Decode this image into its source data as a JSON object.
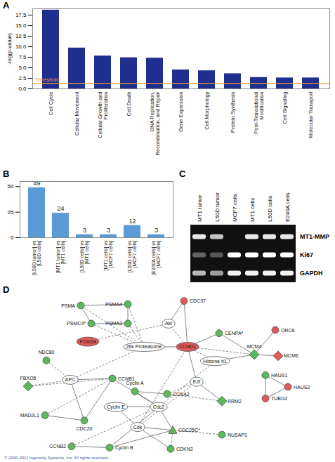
{
  "chart_data": [
    {
      "type": "bar",
      "title": "A",
      "categories": [
        "Cell Cycle",
        "Cellular Movement",
        "Cellular Growth and Proliferation",
        "Cell Death",
        "DNA Replication, Recombination, and Repair",
        "Gene Expression",
        "Cell Morphology",
        "Protein Synthesis",
        "Post-Translational Modification",
        "Cell Signaling",
        "Molecular Transport"
      ],
      "values": [
        18.7,
        9.7,
        7.8,
        7.4,
        7.3,
        4.5,
        4.3,
        3.6,
        2.7,
        2.6,
        2.6
      ],
      "color": "#1f2f8f",
      "ylabel": "-log(p-value)",
      "ylim": [
        0,
        19
      ],
      "yticks": [
        {
          "value": 0,
          "label": "0.0"
        },
        2.5,
        {
          "value": 5,
          "label": "5.0"
        },
        7.5,
        {
          "value": 10,
          "label": "10.0"
        },
        12.5,
        {
          "value": 15,
          "label": "15.0"
        },
        17.5
      ],
      "annotations": [
        {
          "y": 1.3,
          "text": "Threshold",
          "color": "#f0a030"
        }
      ]
    },
    {
      "type": "bar",
      "title": "B",
      "categories": [
        "[L50D tumor] vs [L50D cells]",
        "[MT1 tumor] vs [MT1 cells]",
        "[L50D cells] vs [MT1 cells]",
        "[MT1 cells] vs [MCF7 cells]",
        "[L50D cells] vs [MCF7 cells]",
        "[E240A cells] vs [MCF7 cells]"
      ],
      "values": [
        49,
        24,
        3,
        3,
        12,
        3
      ],
      "color": "#5b9bd5",
      "ylim": [
        0,
        55
      ],
      "yticks": [
        0,
        25,
        50
      ],
      "data_labels": true
    }
  ],
  "gel": {
    "title": "C",
    "lanes": [
      "MT1 tumor",
      "L50D tumor",
      "MCF7 cells",
      "MT1 cells",
      "L50D cells",
      "E240A cells"
    ],
    "rows": [
      {
        "name": "MT1-MMP",
        "bands": [
          0.9,
          0.75,
          0,
          0.9,
          0.9,
          0.9
        ]
      },
      {
        "name": "Ki67",
        "bands": [
          0.35,
          0.3,
          1,
          1,
          1,
          1
        ]
      },
      {
        "name": "GAPDH",
        "bands": [
          0.7,
          0.6,
          0.95,
          0.95,
          0.95,
          0.95
        ]
      }
    ]
  },
  "network": {
    "title": "D",
    "nodes": [
      {
        "label": "PSMA",
        "color": "#5cb85c",
        "marker": "circle"
      },
      {
        "label": "PSMA4",
        "color": "#5cb85c",
        "marker": "circle"
      },
      {
        "label": "PSMC4*",
        "color": "#5cb85c",
        "marker": "circle"
      },
      {
        "label": "PSMA3",
        "color": "#5cb85c",
        "marker": "circle"
      },
      {
        "label": "CDC37",
        "color": "#e05a5a",
        "marker": "circle"
      },
      {
        "label": "Akt",
        "color": "#ffffff",
        "marker": "ellipse"
      },
      {
        "label": "FOXO4",
        "color": "#e05a5a",
        "marker": "ellipse"
      },
      {
        "label": "26s Proteasome",
        "color": "#ffffff",
        "marker": "ellipse"
      },
      {
        "label": "CCND1",
        "color": "#e05a5a",
        "marker": "ellipse"
      },
      {
        "label": "CENPA*",
        "color": "#5cb85c",
        "marker": "circle"
      },
      {
        "label": "ORC6",
        "color": "#e05a5a",
        "marker": "circle"
      },
      {
        "label": "MCM4",
        "color": "#5cb85c",
        "marker": "diamond"
      },
      {
        "label": "MCM6",
        "color": "#e05a5a",
        "marker": "diamond"
      },
      {
        "label": "NDC80",
        "color": "#5cb85c",
        "marker": "circle"
      },
      {
        "label": "Histone h1",
        "color": "#ffffff",
        "marker": "ellipse"
      },
      {
        "label": "HAUS1",
        "color": "#5cb85c",
        "marker": "circle"
      },
      {
        "label": "HAUS2",
        "color": "#e05a5a",
        "marker": "circle"
      },
      {
        "label": "TUBG2",
        "color": "#e05a5a",
        "marker": "circle"
      },
      {
        "label": "FBXO5",
        "color": "#5cb85c",
        "marker": "diamond"
      },
      {
        "label": "APC",
        "color": "#ffffff",
        "marker": "ellipse"
      },
      {
        "label": "CCNB1",
        "color": "#5cb85c",
        "marker": "circle"
      },
      {
        "label": "Cyclin A",
        "color": "#5cb85c",
        "marker": "circle"
      },
      {
        "label": "CCNA2",
        "color": "#5cb85c",
        "marker": "circle"
      },
      {
        "label": "E2f",
        "color": "#ffffff",
        "marker": "ellipse"
      },
      {
        "label": "RRM2",
        "color": "#5cb85c",
        "marker": "diamond"
      },
      {
        "label": "Cdc2",
        "color": "#ffffff",
        "marker": "ellipse"
      },
      {
        "label": "MAD2L1",
        "color": "#5cb85c",
        "marker": "circle"
      },
      {
        "label": "CDC20",
        "color": "#5cb85c",
        "marker": "circle"
      },
      {
        "label": "Cyclin E",
        "color": "#ffffff",
        "marker": "ellipse"
      },
      {
        "label": "Cdk",
        "color": "#ffffff",
        "marker": "ellipse"
      },
      {
        "label": "CDC25C*",
        "color": "#5cb85c",
        "marker": "triangle"
      },
      {
        "label": "NUSAP1",
        "color": "#5cb85c",
        "marker": "circle"
      },
      {
        "label": "CCNB2",
        "color": "#5cb85c",
        "marker": "circle"
      },
      {
        "label": "Cyclin B",
        "color": "#5cb85c",
        "marker": "circle"
      },
      {
        "label": "CDKN3",
        "color": "#5cb85c",
        "marker": "circle"
      }
    ],
    "edges": [
      {
        "from": "PSMA",
        "to": "PSMA4",
        "line_style": "solid"
      },
      {
        "from": "PSMA",
        "to": "PSMC4*",
        "line_style": "solid"
      },
      {
        "from": "PSMA4",
        "to": "PSMA3",
        "line_style": "solid"
      },
      {
        "from": "PSMC4*",
        "to": "PSMA3",
        "line_style": "solid"
      },
      {
        "from": "PSMA",
        "to": "26s Proteasome",
        "line_style": "dashed"
      },
      {
        "from": "PSMA4",
        "to": "26s Proteasome",
        "line_style": "dashed"
      },
      {
        "from": "PSMC4*",
        "to": "26s Proteasome",
        "line_style": "dashed"
      },
      {
        "from": "PSMA3",
        "to": "26s Proteasome",
        "line_style": "dashed"
      },
      {
        "from": "CDC37",
        "to": "Akt",
        "line_style": "solid"
      },
      {
        "from": "CDC37",
        "to": "CCND1",
        "line_style": "solid"
      },
      {
        "from": "Akt",
        "to": "FOXO4",
        "line_style": "dashed"
      },
      {
        "from": "Akt",
        "to": "CCND1",
        "line_style": "dashed"
      },
      {
        "from": "26s Proteasome",
        "to": "CCND1",
        "line_style": "solid"
      },
      {
        "from": "CCND1",
        "to": "CENPA*",
        "line_style": "solid"
      },
      {
        "from": "CCND1",
        "to": "MCM4",
        "line_style": "dashed"
      },
      {
        "from": "ORC6",
        "to": "MCM4",
        "line_style": "solid"
      },
      {
        "from": "MCM6",
        "to": "MCM4",
        "line_style": "solid"
      },
      {
        "from": "CENPA*",
        "to": "MCM4",
        "line_style": "solid"
      },
      {
        "from": "Histone h1",
        "to": "MCM4",
        "line_style": "solid"
      },
      {
        "from": "CCND1",
        "to": "Histone h1",
        "line_style": "dashed"
      },
      {
        "from": "HAUS1",
        "to": "HAUS2",
        "line_style": "solid"
      },
      {
        "from": "HAUS1",
        "to": "TUBG2",
        "line_style": "solid"
      },
      {
        "from": "HAUS2",
        "to": "TUBG2",
        "line_style": "solid"
      },
      {
        "from": "NDC80",
        "to": "APC",
        "line_style": "dashed"
      },
      {
        "from": "FBXO5",
        "to": "APC",
        "line_style": "dashed"
      },
      {
        "from": "FBXO5",
        "to": "CCNB1",
        "line_style": "dashed"
      },
      {
        "from": "APC",
        "to": "CCNB1",
        "line_style": "solid"
      },
      {
        "from": "APC",
        "to": "CDC20",
        "line_style": "solid"
      },
      {
        "from": "APC",
        "to": "26s Proteasome",
        "line_style": "dashed"
      },
      {
        "from": "MAD2L1",
        "to": "CDC20",
        "line_style": "solid"
      },
      {
        "from": "MAD2L1",
        "to": "CCNB1",
        "line_style": "dashed"
      },
      {
        "from": "CDC20",
        "to": "CCNB1",
        "line_style": "solid"
      },
      {
        "from": "CCNB1",
        "to": "Cdc2",
        "line_style": "solid"
      },
      {
        "from": "Cyclin A",
        "to": "Cdc2",
        "line_style": "solid"
      },
      {
        "from": "Cyclin A",
        "to": "CCNA2",
        "line_style": "solid"
      },
      {
        "from": "CCNA2",
        "to": "E2f",
        "line_style": "dashed"
      },
      {
        "from": "CCND1",
        "to": "E2f",
        "line_style": "solid"
      },
      {
        "from": "E2f",
        "to": "RRM2",
        "line_style": "solid"
      },
      {
        "from": "E2f",
        "to": "Cdk",
        "line_style": "dashed"
      },
      {
        "from": "CCND1",
        "to": "Cdk",
        "line_style": "dashed"
      },
      {
        "from": "Cyclin E",
        "to": "Cdk",
        "line_style": "solid"
      },
      {
        "from": "Cyclin E",
        "to": "Cdc2",
        "line_style": "solid"
      },
      {
        "from": "Cdk",
        "to": "CDC25C*",
        "line_style": "solid"
      },
      {
        "from": "Cdc2",
        "to": "CDC25C*",
        "line_style": "solid"
      },
      {
        "from": "CDC25C*",
        "to": "Cyclin B",
        "line_style": "solid"
      },
      {
        "from": "CDC25C*",
        "to": "CDKN3",
        "line_style": "dashed"
      },
      {
        "from": "Cdk",
        "to": "CDKN3",
        "line_style": "solid"
      },
      {
        "from": "CCNB2",
        "to": "Cyclin B",
        "line_style": "solid"
      },
      {
        "from": "Cyclin B",
        "to": "Cdc2",
        "line_style": "solid"
      },
      {
        "from": "CCNB2",
        "to": "Cdc2",
        "line_style": "dashed"
      },
      {
        "from": "NUSAP1",
        "to": "CDC25C*",
        "line_style": "dashed"
      },
      {
        "from": "Histone h1",
        "to": "Cdc2",
        "line_style": "dashed"
      },
      {
        "from": "CCNA2",
        "to": "RRM2",
        "line_style": "dashed"
      }
    ],
    "footer": "© 2000-2011 Ingenuity Systems, Inc. All rights reserved."
  }
}
